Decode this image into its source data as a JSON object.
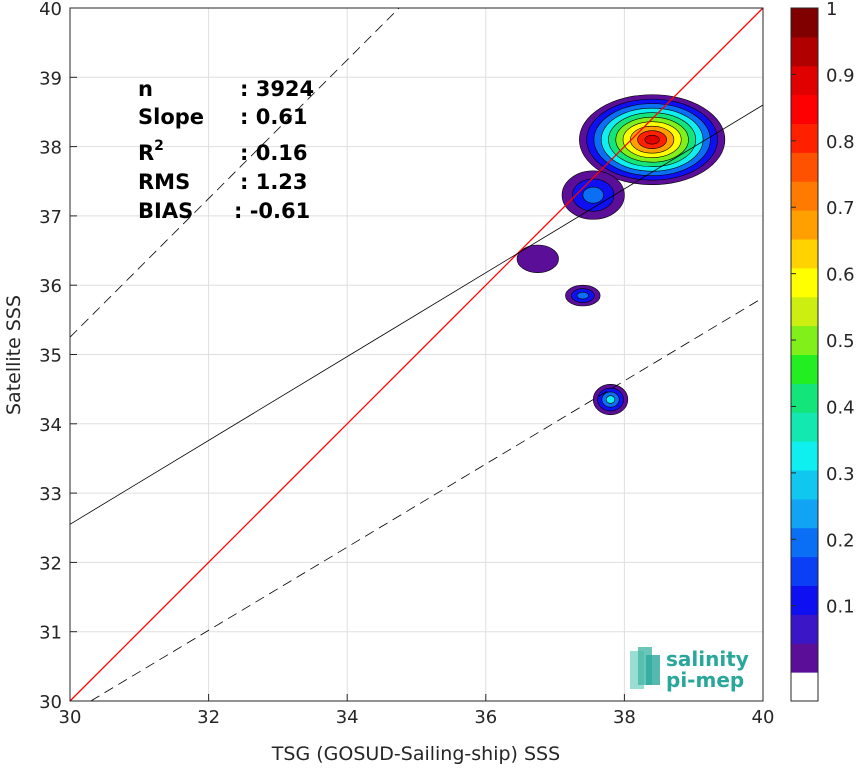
{
  "chart_data": {
    "type": "density-contour-scatter",
    "xlabel": "TSG (GOSUD-Sailing-ship) SSS",
    "ylabel": "Satellite SSS",
    "xlim": [
      30,
      40
    ],
    "ylim": [
      30,
      40
    ],
    "x_ticks": [
      "30",
      "32",
      "34",
      "36",
      "38",
      "40"
    ],
    "y_ticks": [
      "30",
      "31",
      "32",
      "33",
      "34",
      "35",
      "36",
      "37",
      "38",
      "39",
      "40"
    ],
    "grid": true,
    "stats": [
      {
        "label": "n",
        "value": ": 3924"
      },
      {
        "label": "Slope",
        "value": ": 0.61"
      },
      {
        "label": "R",
        "sup": "2",
        "value": ": 0.16"
      },
      {
        "label": "RMS",
        "value": ": 1.23"
      },
      {
        "label": "BIAS",
        "value": ": -0.61"
      }
    ],
    "lines": {
      "one_to_one": {
        "x": [
          30,
          40
        ],
        "y": [
          30,
          40
        ],
        "color": "#ff0000"
      },
      "regression": {
        "intercept_at_30": 32.55,
        "slope": 0.605,
        "color": "#000000"
      },
      "upper_dashed": {
        "x0": 30,
        "y0": 35.25,
        "slope": 1.0
      },
      "lower_dashed": {
        "x0": 30.3,
        "y0": 30.0,
        "slope": 0.6
      }
    },
    "density_blobs": [
      {
        "cx": 38.4,
        "cy": 38.1,
        "rx": 1.05,
        "ry": 0.65,
        "levels": 10
      },
      {
        "cx": 37.55,
        "cy": 37.3,
        "rx": 0.45,
        "ry": 0.35,
        "levels": 3
      },
      {
        "cx": 36.75,
        "cy": 36.38,
        "rx": 0.3,
        "ry": 0.2,
        "levels": 1
      },
      {
        "cx": 37.4,
        "cy": 35.85,
        "rx": 0.25,
        "ry": 0.15,
        "levels": 3
      },
      {
        "cx": 37.8,
        "cy": 34.35,
        "rx": 0.25,
        "ry": 0.22,
        "levels": 4
      }
    ],
    "colorbar": {
      "ticks": [
        "0.1",
        "0.2",
        "0.3",
        "0.4",
        "0.5",
        "0.6",
        "0.7",
        "0.8",
        "0.9",
        "1"
      ],
      "colors": [
        "#ffffff",
        "#5b0f99",
        "#3a16c7",
        "#0f10f2",
        "#0a3ff5",
        "#0a6ff5",
        "#11a4f5",
        "#10c8ef",
        "#10efef",
        "#12e8b0",
        "#13e57a",
        "#22ee22",
        "#80ef1a",
        "#ccee11",
        "#ffff00",
        "#ffd200",
        "#ff9f00",
        "#ff7a00",
        "#ff5200",
        "#ff2000",
        "#ff0000",
        "#e00000",
        "#b00000",
        "#800000"
      ]
    }
  },
  "logo": {
    "line1": "salinity",
    "line2": "pi-mep"
  }
}
